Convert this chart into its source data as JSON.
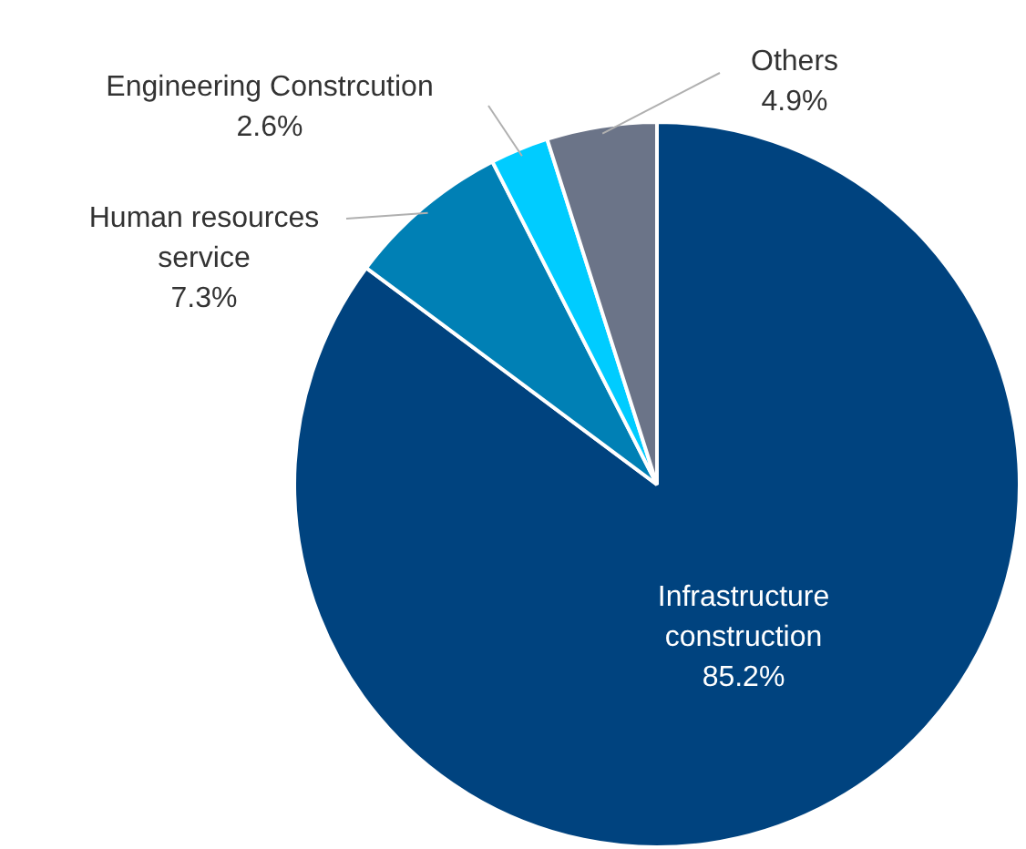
{
  "chart_data": {
    "type": "pie",
    "categories": [
      "Infrastructure construction",
      "Human resources service",
      "Engineering Constrcution",
      "Others"
    ],
    "values": [
      85.2,
      7.3,
      2.6,
      4.9
    ],
    "value_labels": [
      "85.2%",
      "7.3%",
      "2.6%",
      "4.9%"
    ],
    "colors": [
      "#00437f",
      "#0080b5",
      "#00ccff",
      "#6b7488"
    ],
    "legend": false
  }
}
